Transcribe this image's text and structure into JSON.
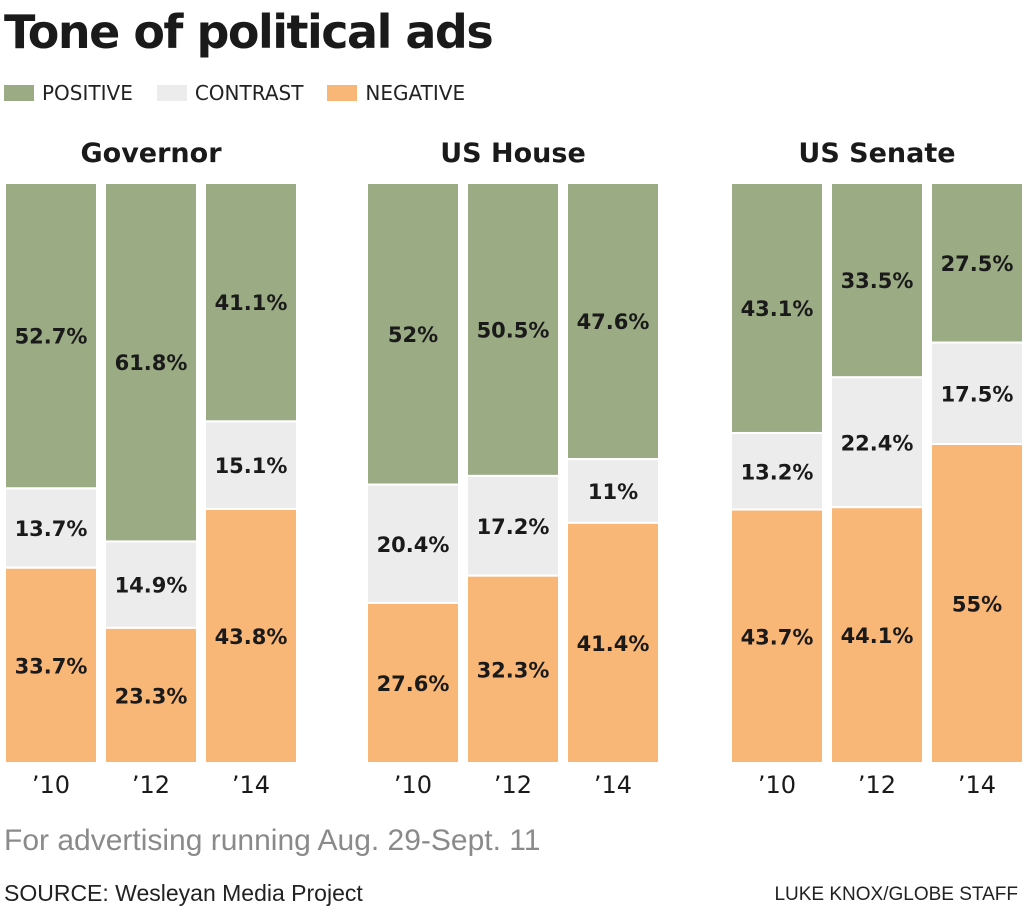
{
  "chart_data": {
    "type": "bar",
    "stacked": true,
    "percent_stacked": true,
    "title": "Tone of political ads",
    "subtitle": "For advertising running Aug. 29-Sept. 11",
    "legend": [
      {
        "name": "POSITIVE",
        "color": "#9bab84"
      },
      {
        "name": "CONTRAST",
        "color": "#ececec"
      },
      {
        "name": "NEGATIVE",
        "color": "#f8b677"
      }
    ],
    "legend_position": "top-left",
    "ylim": [
      0,
      100
    ],
    "grid": false,
    "panels": [
      {
        "title": "Governor",
        "categories": [
          "’10",
          "’12",
          "’14"
        ],
        "series": [
          {
            "name": "POSITIVE",
            "values": [
              52.7,
              61.8,
              41.1
            ],
            "labels": [
              "52.7%",
              "61.8%",
              "41.1%"
            ]
          },
          {
            "name": "CONTRAST",
            "values": [
              13.7,
              14.9,
              15.1
            ],
            "labels": [
              "13.7%",
              "14.9%",
              "15.1%"
            ]
          },
          {
            "name": "NEGATIVE",
            "values": [
              33.7,
              23.3,
              43.8
            ],
            "labels": [
              "33.7%",
              "23.3%",
              "43.8%"
            ]
          }
        ]
      },
      {
        "title": "US House",
        "categories": [
          "’10",
          "’12",
          "’14"
        ],
        "series": [
          {
            "name": "POSITIVE",
            "values": [
              52,
              50.5,
              47.6
            ],
            "labels": [
              "52%",
              "50.5%",
              "47.6%"
            ]
          },
          {
            "name": "CONTRAST",
            "values": [
              20.4,
              17.2,
              11
            ],
            "labels": [
              "20.4%",
              "17.2%",
              "11%"
            ]
          },
          {
            "name": "NEGATIVE",
            "values": [
              27.6,
              32.3,
              41.4
            ],
            "labels": [
              "27.6%",
              "32.3%",
              "41.4%"
            ]
          }
        ]
      },
      {
        "title": "US Senate",
        "categories": [
          "’10",
          "’12",
          "’14"
        ],
        "series": [
          {
            "name": "POSITIVE",
            "values": [
              43.1,
              33.5,
              27.5
            ],
            "labels": [
              "43.1%",
              "33.5%",
              "27.5%"
            ]
          },
          {
            "name": "CONTRAST",
            "values": [
              13.2,
              22.4,
              17.5
            ],
            "labels": [
              "13.2%",
              "22.4%",
              "17.5%"
            ]
          },
          {
            "name": "NEGATIVE",
            "values": [
              43.7,
              44.1,
              55
            ],
            "labels": [
              "43.7%",
              "44.1%",
              "55%"
            ]
          }
        ]
      }
    ]
  },
  "footer": {
    "source": "SOURCE: Wesleyan Media Project",
    "credit": "LUKE KNOX/GLOBE STAFF"
  }
}
